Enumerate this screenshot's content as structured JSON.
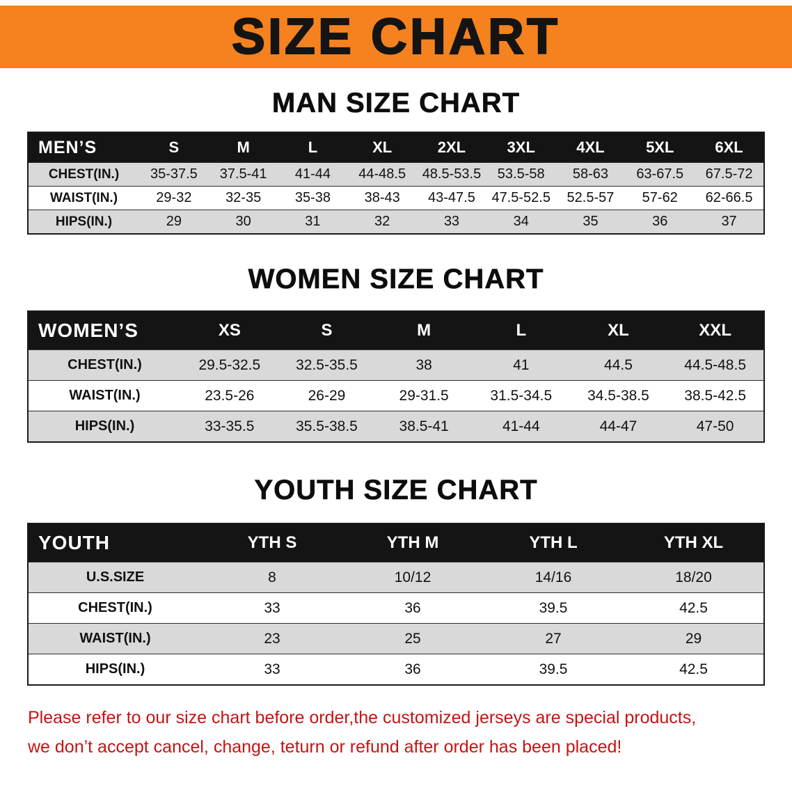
{
  "banner": {
    "title": "SIZE CHART"
  },
  "colors": {
    "banner_bg": "#F5821F",
    "table_header_bg": "#141414",
    "shaded_row_bg": "#d9d9d9",
    "disclaimer_red": "#c41414"
  },
  "man": {
    "heading": "MAN SIZE CHART",
    "table": {
      "header": [
        "MEN’S",
        "S",
        "M",
        "L",
        "XL",
        "2XL",
        "3XL",
        "4XL",
        "5XL",
        "6XL"
      ],
      "rows": [
        [
          "CHEST(IN.)",
          "35-37.5",
          "37.5-41",
          "41-44",
          "44-48.5",
          "48.5-53.5",
          "53.5-58",
          "58-63",
          "63-67.5",
          "67.5-72"
        ],
        [
          "WAIST(IN.)",
          "29-32",
          "32-35",
          "35-38",
          "38-43",
          "43-47.5",
          "47.5-52.5",
          "52.5-57",
          "57-62",
          "62-66.5"
        ],
        [
          "HIPS(IN.)",
          "29",
          "30",
          "31",
          "32",
          "33",
          "34",
          "35",
          "36",
          "37"
        ]
      ]
    }
  },
  "women": {
    "heading": "WOMEN SIZE CHART",
    "table": {
      "header": [
        "WOMEN’S",
        "XS",
        "S",
        "M",
        "L",
        "XL",
        "XXL"
      ],
      "rows": [
        [
          "CHEST(IN.)",
          "29.5-32.5",
          "32.5-35.5",
          "38",
          "41",
          "44.5",
          "44.5-48.5"
        ],
        [
          "WAIST(IN.)",
          "23.5-26",
          "26-29",
          "29-31.5",
          "31.5-34.5",
          "34.5-38.5",
          "38.5-42.5"
        ],
        [
          "HIPS(IN.)",
          "33-35.5",
          "35.5-38.5",
          "38.5-41",
          "41-44",
          "44-47",
          "47-50"
        ]
      ]
    }
  },
  "youth": {
    "heading": "YOUTH SIZE CHART",
    "table": {
      "header": [
        "YOUTH",
        "YTH S",
        "YTH M",
        "YTH L",
        "YTH XL"
      ],
      "rows": [
        [
          "U.S.SIZE",
          "8",
          "10/12",
          "14/16",
          "18/20"
        ],
        [
          "CHEST(IN.)",
          "33",
          "36",
          "39.5",
          "42.5"
        ],
        [
          "WAIST(IN.)",
          "23",
          "25",
          "27",
          "29"
        ],
        [
          "HIPS(IN.)",
          "33",
          "36",
          "39.5",
          "42.5"
        ]
      ]
    }
  },
  "disclaimer": {
    "line1": "Please refer to our size chart before order,the customized jerseys are special products,",
    "line2": "we don’t accept cancel, change, teturn or refund after order has been placed!"
  }
}
